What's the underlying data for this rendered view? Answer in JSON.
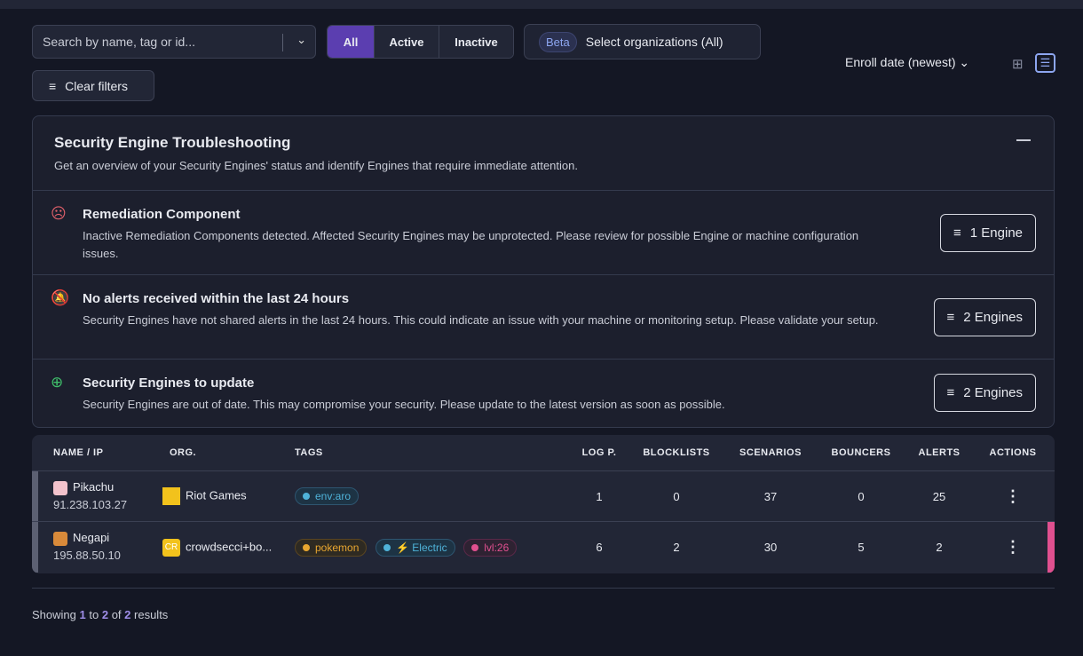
{
  "filters": {
    "search_placeholder": "Search by name, tag or id...",
    "status_options": [
      "All",
      "Active",
      "Inactive"
    ],
    "status_selected": "All",
    "beta_badge": "Beta",
    "org_select": "Select organizations (All)",
    "clear_filters": "Clear filters",
    "sort": "Enroll date (newest)"
  },
  "troubleshooting": {
    "title": "Security Engine Troubleshooting",
    "subtitle": "Get an overview of your Security Engines' status and identify Engines that require immediate attention.",
    "items": [
      {
        "title": "Remediation Component",
        "description": "Inactive Remediation Components detected. Affected Security Engines may be unprotected. Please review for possible Engine or machine configuration issues.",
        "button": "1 Engine",
        "icon": "sad-face-icon",
        "color": "#e0606a"
      },
      {
        "title": "No alerts received within the last 24 hours",
        "description": "Security Engines have not shared alerts in the last 24 hours. This could indicate an issue with your machine or monitoring setup. Please validate your setup.",
        "button": "2 Engines",
        "icon": "bell-off-icon",
        "color": "#e8b53a"
      },
      {
        "title": "Security Engines to update",
        "description": "Security Engines are out of date. This may compromise your security. Please update to the latest version as soon as possible.",
        "button": "2 Engines",
        "icon": "arrow-up-circle-icon",
        "color": "#3fbf6a"
      }
    ]
  },
  "table": {
    "headers": [
      "NAME / IP",
      "ORG.",
      "TAGS",
      "LOG P.",
      "BLOCKLISTS",
      "SCENARIOS",
      "BOUNCERS",
      "ALERTS",
      "ACTIONS"
    ],
    "rows": [
      {
        "name": "Pikachu",
        "ip": "91.238.103.27",
        "org": "Riot Games",
        "tags": [
          {
            "label": "env:aro",
            "color": "#4fb3d9"
          }
        ],
        "log_p": "1",
        "blocklists": "0",
        "scenarios": "37",
        "bouncers": "0",
        "alerts": "25"
      },
      {
        "name": "Negapi",
        "ip": "195.88.50.10",
        "org_badge": "CR",
        "org": "crowdsecci+bo...",
        "tags": [
          {
            "label": "pokemon",
            "color": "#e8a630"
          },
          {
            "label": "⚡ Electric",
            "color": "#4fb3d9"
          },
          {
            "label": "lvl:26",
            "color": "#e0508f"
          }
        ],
        "log_p": "6",
        "blocklists": "2",
        "scenarios": "30",
        "bouncers": "5",
        "alerts": "2"
      }
    ]
  },
  "pagination": {
    "prefix": "Showing",
    "from": "1",
    "to_word": "to",
    "to": "2",
    "of_word": "of",
    "total": "2",
    "suffix": "results"
  }
}
